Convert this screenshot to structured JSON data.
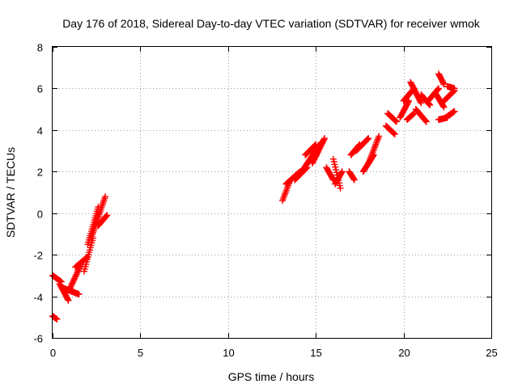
{
  "chart_data": {
    "type": "scatter",
    "title": "Day 176 of 2018, Sidereal Day-to-day VTEC variation (SDTVAR) for receiver wmok",
    "xlabel": "GPS time / hours",
    "ylabel": "SDTVAR / TECUs",
    "xlim": [
      0,
      25
    ],
    "ylim": [
      -6,
      8
    ],
    "xticks": [
      0,
      5,
      10,
      15,
      20,
      25
    ],
    "yticks": [
      -6,
      -4,
      -2,
      0,
      2,
      4,
      6,
      8
    ],
    "xtick_labels": [
      "0",
      "5",
      "10",
      "15",
      "20",
      "25"
    ],
    "ytick_labels": [
      "-6",
      "-4",
      "-2",
      "0",
      "2",
      "4",
      "6",
      "8"
    ],
    "grid": true,
    "marker": "plus",
    "color": "#ff0000",
    "segments": [
      {
        "t0": 0.0,
        "t1": 0.25,
        "v0": -4.95,
        "v1": -5.1
      },
      {
        "t0": 0.0,
        "t1": 0.5,
        "v0": -3.0,
        "v1": -3.3
      },
      {
        "t0": 0.4,
        "t1": 0.9,
        "v0": -3.4,
        "v1": -4.2
      },
      {
        "t0": 0.6,
        "t1": 1.5,
        "v0": -3.6,
        "v1": -3.9
      },
      {
        "t0": 1.0,
        "t1": 1.6,
        "v0": -3.6,
        "v1": -2.5
      },
      {
        "t0": 1.3,
        "t1": 2.0,
        "v0": -2.6,
        "v1": -2.1
      },
      {
        "t0": 1.8,
        "t1": 2.3,
        "v0": -2.8,
        "v1": -1.2
      },
      {
        "t0": 2.0,
        "t1": 2.6,
        "v0": -1.5,
        "v1": 0.3
      },
      {
        "t0": 2.2,
        "t1": 3.0,
        "v0": -1.2,
        "v1": 0.8
      },
      {
        "t0": 2.6,
        "t1": 3.1,
        "v0": -0.6,
        "v1": -0.1
      },
      {
        "t0": 13.1,
        "t1": 13.5,
        "v0": 0.6,
        "v1": 1.5
      },
      {
        "t0": 13.3,
        "t1": 14.1,
        "v0": 1.4,
        "v1": 2.0
      },
      {
        "t0": 13.8,
        "t1": 14.5,
        "v0": 1.6,
        "v1": 2.2
      },
      {
        "t0": 14.2,
        "t1": 15.3,
        "v0": 2.0,
        "v1": 3.4
      },
      {
        "t0": 14.4,
        "t1": 15.0,
        "v0": 2.8,
        "v1": 3.3
      },
      {
        "t0": 14.8,
        "t1": 15.5,
        "v0": 2.4,
        "v1": 3.6
      },
      {
        "t0": 15.6,
        "t1": 16.0,
        "v0": 2.2,
        "v1": 1.6
      },
      {
        "t0": 16.0,
        "t1": 16.4,
        "v0": 2.6,
        "v1": 1.2
      },
      {
        "t0": 16.1,
        "t1": 16.5,
        "v0": 1.4,
        "v1": 2.0
      },
      {
        "t0": 16.9,
        "t1": 17.2,
        "v0": 2.0,
        "v1": 1.6
      },
      {
        "t0": 17.0,
        "t1": 17.5,
        "v0": 2.8,
        "v1": 3.3
      },
      {
        "t0": 17.3,
        "t1": 18.0,
        "v0": 3.0,
        "v1": 3.6
      },
      {
        "t0": 17.7,
        "t1": 18.3,
        "v0": 2.0,
        "v1": 2.8
      },
      {
        "t0": 18.0,
        "t1": 18.6,
        "v0": 2.4,
        "v1": 3.7
      },
      {
        "t0": 19.0,
        "t1": 19.5,
        "v0": 4.2,
        "v1": 3.8
      },
      {
        "t0": 19.1,
        "t1": 19.6,
        "v0": 4.8,
        "v1": 4.4
      },
      {
        "t0": 19.8,
        "t1": 20.3,
        "v0": 4.6,
        "v1": 5.4
      },
      {
        "t0": 20.0,
        "t1": 20.6,
        "v0": 5.4,
        "v1": 6.0
      },
      {
        "t0": 20.2,
        "t1": 20.6,
        "v0": 4.5,
        "v1": 4.8
      },
      {
        "t0": 20.4,
        "t1": 21.0,
        "v0": 6.3,
        "v1": 5.3
      },
      {
        "t0": 20.7,
        "t1": 21.3,
        "v0": 5.0,
        "v1": 4.4
      },
      {
        "t0": 21.0,
        "t1": 21.5,
        "v0": 5.7,
        "v1": 5.2
      },
      {
        "t0": 21.4,
        "t1": 22.0,
        "v0": 5.4,
        "v1": 6.0
      },
      {
        "t0": 21.8,
        "t1": 22.3,
        "v0": 5.8,
        "v1": 5.1
      },
      {
        "t0": 22.0,
        "t1": 22.3,
        "v0": 6.7,
        "v1": 6.2
      },
      {
        "t0": 22.0,
        "t1": 22.5,
        "v0": 4.5,
        "v1": 4.6
      },
      {
        "t0": 22.4,
        "t1": 22.9,
        "v0": 4.6,
        "v1": 4.9
      },
      {
        "t0": 22.3,
        "t1": 22.9,
        "v0": 5.4,
        "v1": 5.9
      },
      {
        "t0": 22.5,
        "t1": 22.9,
        "v0": 6.1,
        "v1": 6.0
      }
    ]
  }
}
